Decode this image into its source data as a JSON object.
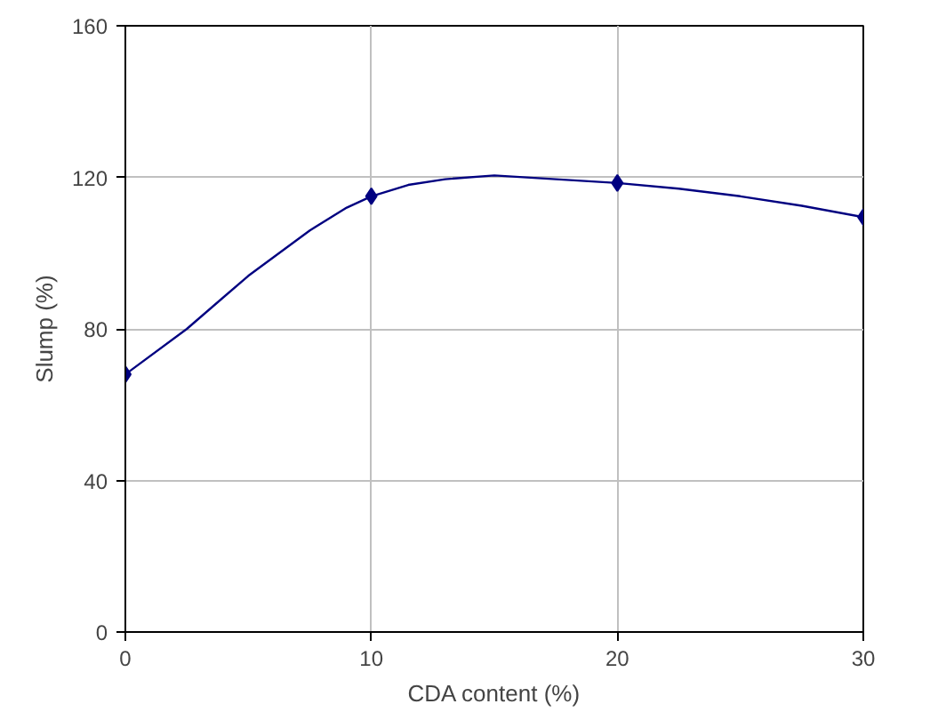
{
  "chart_data": {
    "type": "line",
    "xlabel": "CDA content (%)",
    "ylabel": "Slump (%)",
    "x": [
      0,
      10,
      20,
      30
    ],
    "series": [
      {
        "color": "#000080",
        "marker": "none",
        "x": [
          0,
          2.5,
          5,
          7.5,
          9,
          10,
          11.5,
          13,
          15,
          17.5,
          20,
          22.5,
          25,
          27.5,
          30
        ],
        "values": [
          68,
          80,
          94,
          106,
          112,
          115,
          118,
          119.5,
          120.5,
          119.5,
          118.5,
          117,
          115,
          112.5,
          109.5
        ]
      },
      {
        "type": "scatter",
        "color": "#000080",
        "values": [
          68,
          115,
          118.5,
          109.5
        ]
      }
    ],
    "xlim": [
      0,
      30
    ],
    "xticks": [
      0,
      10,
      20,
      30
    ],
    "ylim": [
      0,
      160
    ],
    "yticks": [
      0,
      40,
      80,
      120,
      160
    ],
    "grid": true,
    "marker": "diamond",
    "line_style": "solid"
  }
}
